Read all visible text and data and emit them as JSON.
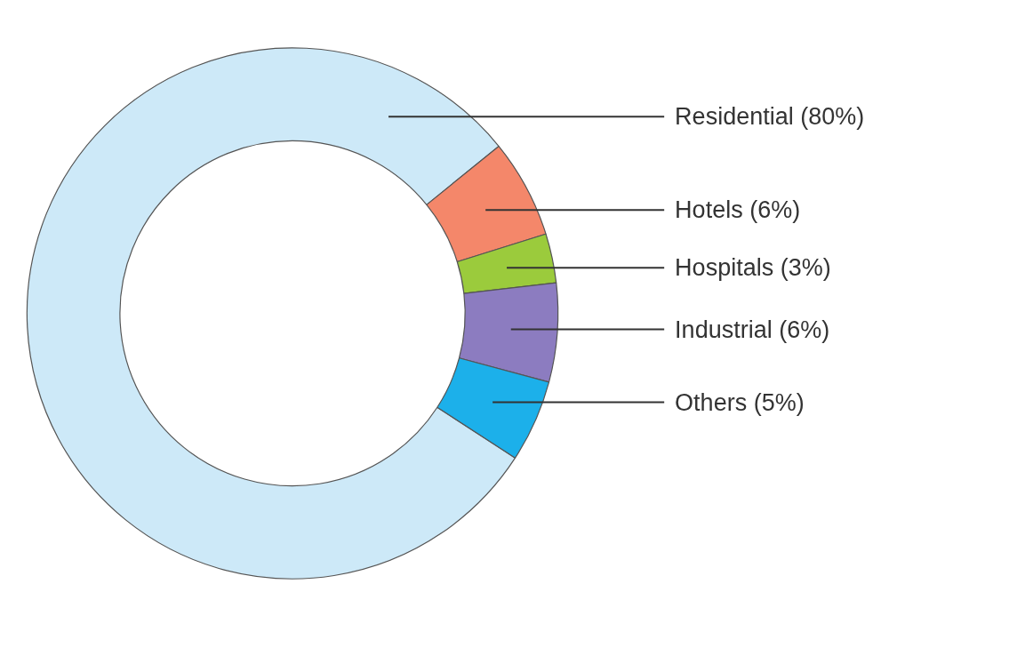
{
  "chart_data": {
    "type": "donut",
    "categories": [
      "Residential (80%)",
      "Hotels (6%)",
      "Hospitals (3%)",
      "Industrial (6%)",
      "Others (5%)"
    ],
    "values": [
      80,
      6,
      3,
      6,
      5
    ],
    "colors": [
      "#cde9f8",
      "#f4876a",
      "#9bcb3c",
      "#8c7cc0",
      "#1cb0ea"
    ]
  }
}
